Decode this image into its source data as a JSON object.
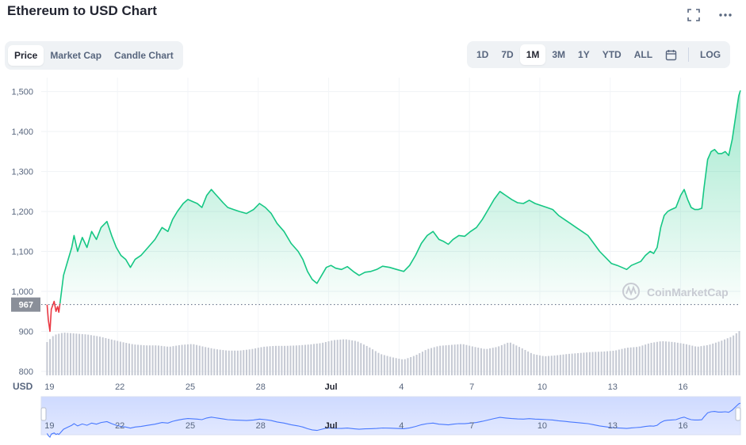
{
  "header": {
    "title": "Ethereum to USD Chart"
  },
  "tabs": [
    {
      "label": "Price",
      "active": true
    },
    {
      "label": "Market Cap",
      "active": false
    },
    {
      "label": "Candle Chart",
      "active": false
    }
  ],
  "ranges": [
    {
      "label": "1D",
      "active": false
    },
    {
      "label": "7D",
      "active": false
    },
    {
      "label": "1M",
      "active": true
    },
    {
      "label": "3M",
      "active": false
    },
    {
      "label": "1Y",
      "active": false
    },
    {
      "label": "YTD",
      "active": false
    },
    {
      "label": "ALL",
      "active": false
    }
  ],
  "log_label": "LOG",
  "icons": {
    "fullscreen": "fullscreen-icon",
    "more": "more-icon",
    "calendar": "calendar-icon"
  },
  "colors": {
    "up": "#16c784",
    "down": "#ea3943",
    "navigator": "#4878ff",
    "text": "#58667e"
  },
  "chart_data": {
    "type": "area",
    "title": "",
    "xlabel": "",
    "ylabel": "USD",
    "currency_label": "USD",
    "watermark": "CoinMarketCap",
    "ylim": [
      790,
      1535
    ],
    "yticks": [
      800,
      900,
      1000,
      1100,
      1200,
      1300,
      1400,
      1500
    ],
    "ytick_labels": [
      "800",
      "900",
      "1,000",
      "1,100",
      "1,200",
      "1,300",
      "1,400",
      "1,500"
    ],
    "xticks": [
      {
        "label": "19",
        "day": 0
      },
      {
        "label": "22",
        "day": 3
      },
      {
        "label": "25",
        "day": 6
      },
      {
        "label": "28",
        "day": 9
      },
      {
        "label": "Jul",
        "day": 12
      },
      {
        "label": "4",
        "day": 15
      },
      {
        "label": "7",
        "day": 18
      },
      {
        "label": "10",
        "day": 21
      },
      {
        "label": "13",
        "day": 24
      },
      {
        "label": "16",
        "day": 27
      }
    ],
    "xlim_days": [
      -0.25,
      29.55
    ],
    "reference": {
      "value": 967,
      "label": "967"
    },
    "price_series": [
      [
        0.0,
        967
      ],
      [
        0.05,
        930
      ],
      [
        0.12,
        900
      ],
      [
        0.18,
        955
      ],
      [
        0.3,
        975
      ],
      [
        0.38,
        950
      ],
      [
        0.45,
        962
      ],
      [
        0.5,
        948
      ],
      [
        0.55,
        970
      ],
      [
        0.7,
        1040
      ],
      [
        0.9,
        1080
      ],
      [
        1.05,
        1110
      ],
      [
        1.15,
        1140
      ],
      [
        1.3,
        1100
      ],
      [
        1.5,
        1135
      ],
      [
        1.7,
        1110
      ],
      [
        1.9,
        1150
      ],
      [
        2.1,
        1130
      ],
      [
        2.3,
        1160
      ],
      [
        2.55,
        1175
      ],
      [
        2.75,
        1140
      ],
      [
        2.95,
        1110
      ],
      [
        3.15,
        1090
      ],
      [
        3.35,
        1080
      ],
      [
        3.55,
        1060
      ],
      [
        3.75,
        1080
      ],
      [
        4.0,
        1090
      ],
      [
        4.3,
        1110
      ],
      [
        4.6,
        1130
      ],
      [
        4.9,
        1160
      ],
      [
        5.15,
        1150
      ],
      [
        5.35,
        1180
      ],
      [
        5.55,
        1200
      ],
      [
        5.8,
        1220
      ],
      [
        6.0,
        1230
      ],
      [
        6.2,
        1225
      ],
      [
        6.4,
        1220
      ],
      [
        6.6,
        1210
      ],
      [
        6.8,
        1240
      ],
      [
        7.0,
        1255
      ],
      [
        7.15,
        1245
      ],
      [
        7.3,
        1235
      ],
      [
        7.5,
        1222
      ],
      [
        7.7,
        1210
      ],
      [
        7.95,
        1205
      ],
      [
        8.2,
        1200
      ],
      [
        8.5,
        1195
      ],
      [
        8.8,
        1205
      ],
      [
        9.05,
        1220
      ],
      [
        9.3,
        1210
      ],
      [
        9.55,
        1195
      ],
      [
        9.8,
        1170
      ],
      [
        10.1,
        1150
      ],
      [
        10.4,
        1120
      ],
      [
        10.7,
        1100
      ],
      [
        10.9,
        1080
      ],
      [
        11.1,
        1050
      ],
      [
        11.3,
        1030
      ],
      [
        11.5,
        1020
      ],
      [
        11.7,
        1040
      ],
      [
        11.9,
        1060
      ],
      [
        12.1,
        1065
      ],
      [
        12.3,
        1058
      ],
      [
        12.55,
        1055
      ],
      [
        12.8,
        1062
      ],
      [
        13.05,
        1050
      ],
      [
        13.3,
        1040
      ],
      [
        13.55,
        1048
      ],
      [
        13.8,
        1050
      ],
      [
        14.05,
        1055
      ],
      [
        14.3,
        1063
      ],
      [
        14.6,
        1060
      ],
      [
        14.9,
        1055
      ],
      [
        15.2,
        1050
      ],
      [
        15.45,
        1065
      ],
      [
        15.7,
        1090
      ],
      [
        15.95,
        1120
      ],
      [
        16.2,
        1140
      ],
      [
        16.45,
        1150
      ],
      [
        16.7,
        1130
      ],
      [
        16.9,
        1125
      ],
      [
        17.1,
        1118
      ],
      [
        17.3,
        1130
      ],
      [
        17.55,
        1140
      ],
      [
        17.8,
        1138
      ],
      [
        18.05,
        1150
      ],
      [
        18.3,
        1160
      ],
      [
        18.55,
        1180
      ],
      [
        18.8,
        1205
      ],
      [
        19.05,
        1230
      ],
      [
        19.3,
        1250
      ],
      [
        19.55,
        1240
      ],
      [
        19.8,
        1230
      ],
      [
        20.05,
        1222
      ],
      [
        20.3,
        1220
      ],
      [
        20.55,
        1228
      ],
      [
        20.8,
        1220
      ],
      [
        21.05,
        1215
      ],
      [
        21.3,
        1210
      ],
      [
        21.55,
        1205
      ],
      [
        21.8,
        1190
      ],
      [
        22.05,
        1180
      ],
      [
        22.3,
        1170
      ],
      [
        22.55,
        1160
      ],
      [
        22.8,
        1150
      ],
      [
        23.05,
        1140
      ],
      [
        23.3,
        1120
      ],
      [
        23.55,
        1100
      ],
      [
        23.8,
        1085
      ],
      [
        24.05,
        1070
      ],
      [
        24.3,
        1065
      ],
      [
        24.5,
        1060
      ],
      [
        24.7,
        1055
      ],
      [
        24.9,
        1065
      ],
      [
        25.1,
        1070
      ],
      [
        25.3,
        1075
      ],
      [
        25.5,
        1090
      ],
      [
        25.7,
        1100
      ],
      [
        25.85,
        1095
      ],
      [
        26.0,
        1110
      ],
      [
        26.15,
        1160
      ],
      [
        26.3,
        1190
      ],
      [
        26.45,
        1200
      ],
      [
        26.6,
        1205
      ],
      [
        26.8,
        1210
      ],
      [
        27.0,
        1240
      ],
      [
        27.15,
        1255
      ],
      [
        27.3,
        1230
      ],
      [
        27.45,
        1210
      ],
      [
        27.6,
        1205
      ],
      [
        27.75,
        1205
      ],
      [
        27.9,
        1208
      ],
      [
        28.0,
        1260
      ],
      [
        28.15,
        1330
      ],
      [
        28.3,
        1350
      ],
      [
        28.45,
        1355
      ],
      [
        28.6,
        1345
      ],
      [
        28.75,
        1345
      ],
      [
        28.9,
        1350
      ],
      [
        29.05,
        1340
      ],
      [
        29.2,
        1380
      ],
      [
        29.3,
        1420
      ],
      [
        29.4,
        1460
      ],
      [
        29.48,
        1490
      ],
      [
        29.55,
        1503
      ]
    ],
    "volume_series": [
      [
        0.0,
        0.7
      ],
      [
        0.3,
        0.85
      ],
      [
        0.7,
        0.9
      ],
      [
        1.2,
        0.88
      ],
      [
        1.7,
        0.86
      ],
      [
        2.2,
        0.82
      ],
      [
        2.7,
        0.76
      ],
      [
        3.2,
        0.7
      ],
      [
        3.7,
        0.65
      ],
      [
        4.2,
        0.63
      ],
      [
        4.7,
        0.63
      ],
      [
        5.2,
        0.6
      ],
      [
        5.7,
        0.64
      ],
      [
        6.2,
        0.66
      ],
      [
        6.7,
        0.6
      ],
      [
        7.2,
        0.55
      ],
      [
        7.7,
        0.52
      ],
      [
        8.2,
        0.52
      ],
      [
        8.7,
        0.55
      ],
      [
        9.2,
        0.6
      ],
      [
        9.7,
        0.62
      ],
      [
        10.2,
        0.62
      ],
      [
        10.7,
        0.63
      ],
      [
        11.2,
        0.65
      ],
      [
        11.7,
        0.68
      ],
      [
        12.2,
        0.74
      ],
      [
        12.7,
        0.76
      ],
      [
        13.2,
        0.72
      ],
      [
        13.7,
        0.6
      ],
      [
        14.2,
        0.45
      ],
      [
        14.7,
        0.38
      ],
      [
        15.2,
        0.33
      ],
      [
        15.7,
        0.42
      ],
      [
        16.2,
        0.55
      ],
      [
        16.7,
        0.62
      ],
      [
        17.2,
        0.64
      ],
      [
        17.7,
        0.66
      ],
      [
        18.2,
        0.6
      ],
      [
        18.7,
        0.55
      ],
      [
        19.2,
        0.6
      ],
      [
        19.7,
        0.7
      ],
      [
        20.2,
        0.58
      ],
      [
        20.7,
        0.45
      ],
      [
        21.2,
        0.4
      ],
      [
        21.7,
        0.42
      ],
      [
        22.2,
        0.45
      ],
      [
        22.7,
        0.47
      ],
      [
        23.2,
        0.49
      ],
      [
        23.7,
        0.5
      ],
      [
        24.2,
        0.52
      ],
      [
        24.7,
        0.58
      ],
      [
        25.2,
        0.6
      ],
      [
        25.7,
        0.68
      ],
      [
        26.2,
        0.72
      ],
      [
        26.7,
        0.7
      ],
      [
        27.2,
        0.66
      ],
      [
        27.7,
        0.6
      ],
      [
        28.2,
        0.64
      ],
      [
        28.7,
        0.72
      ],
      [
        29.2,
        0.82
      ],
      [
        29.55,
        0.95
      ]
    ]
  }
}
